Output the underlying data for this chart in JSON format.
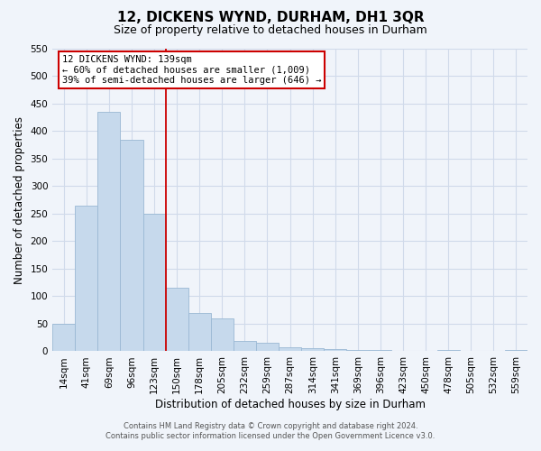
{
  "title": "12, DICKENS WYND, DURHAM, DH1 3QR",
  "subtitle": "Size of property relative to detached houses in Durham",
  "xlabel": "Distribution of detached houses by size in Durham",
  "ylabel": "Number of detached properties",
  "bar_labels": [
    "14sqm",
    "41sqm",
    "69sqm",
    "96sqm",
    "123sqm",
    "150sqm",
    "178sqm",
    "205sqm",
    "232sqm",
    "259sqm",
    "287sqm",
    "314sqm",
    "341sqm",
    "369sqm",
    "396sqm",
    "423sqm",
    "450sqm",
    "478sqm",
    "505sqm",
    "532sqm",
    "559sqm"
  ],
  "bar_values": [
    50,
    265,
    435,
    385,
    250,
    115,
    70,
    60,
    18,
    15,
    8,
    5,
    4,
    2,
    2,
    1,
    0,
    3,
    0,
    0,
    3
  ],
  "bar_color": "#c6d9ec",
  "bar_edge_color": "#9ab8d4",
  "vline_x": 4.5,
  "vline_color": "#cc0000",
  "ylim": [
    0,
    550
  ],
  "yticks": [
    0,
    50,
    100,
    150,
    200,
    250,
    300,
    350,
    400,
    450,
    500,
    550
  ],
  "annotation_title": "12 DICKENS WYND: 139sqm",
  "annotation_line1": "← 60% of detached houses are smaller (1,009)",
  "annotation_line2": "39% of semi-detached houses are larger (646) →",
  "annotation_box_color": "#ffffff",
  "annotation_box_edge": "#cc0000",
  "footer1": "Contains HM Land Registry data © Crown copyright and database right 2024.",
  "footer2": "Contains public sector information licensed under the Open Government Licence v3.0.",
  "bg_color": "#f0f4fa",
  "grid_color": "#d0daea",
  "title_fontsize": 11,
  "subtitle_fontsize": 9,
  "axis_label_fontsize": 8.5,
  "tick_fontsize": 7.5,
  "ann_fontsize": 7.5
}
